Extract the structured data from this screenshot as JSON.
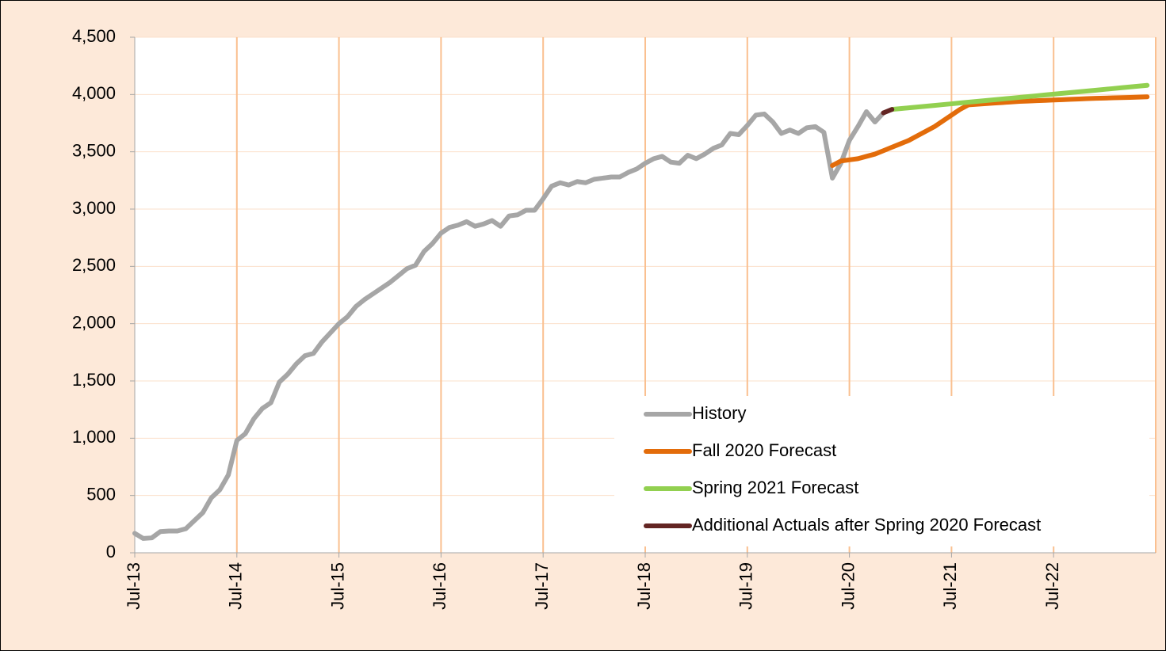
{
  "chart_data": {
    "type": "line",
    "categories": [
      "Jul-13",
      null,
      null,
      null,
      null,
      null,
      null,
      null,
      null,
      null,
      null,
      null,
      "Jul-14",
      null,
      null,
      null,
      null,
      null,
      null,
      null,
      null,
      null,
      null,
      null,
      "Jul-15",
      null,
      null,
      null,
      null,
      null,
      null,
      null,
      null,
      null,
      null,
      null,
      "Jul-16",
      null,
      null,
      null,
      null,
      null,
      null,
      null,
      null,
      null,
      null,
      null,
      "Jul-17",
      null,
      null,
      null,
      null,
      null,
      null,
      null,
      null,
      null,
      null,
      null,
      "Jul-18",
      null,
      null,
      null,
      null,
      null,
      null,
      null,
      null,
      null,
      null,
      null,
      "Jul-19",
      null,
      null,
      null,
      null,
      null,
      null,
      null,
      null,
      null,
      null,
      null,
      "Jul-20",
      null,
      null,
      null,
      null,
      null,
      null,
      null,
      null,
      null,
      null,
      null,
      "Jul-21",
      null,
      null,
      null,
      null,
      null,
      null,
      null,
      null,
      null,
      null,
      null,
      "Jul-22",
      null,
      null,
      null,
      null,
      null,
      null,
      null,
      null,
      null,
      null,
      null
    ],
    "series": [
      {
        "name": "History",
        "color": "#a6a6a6",
        "values": [
          170,
          125,
          130,
          185,
          190,
          190,
          210,
          280,
          350,
          480,
          550,
          680,
          980,
          1040,
          1170,
          1260,
          1310,
          1490,
          1560,
          1650,
          1720,
          1740,
          1840,
          1920,
          2000,
          2060,
          2150,
          2210,
          2260,
          2310,
          2360,
          2420,
          2480,
          2510,
          2630,
          2700,
          2790,
          2840,
          2860,
          2890,
          2850,
          2870,
          2900,
          2850,
          2940,
          2950,
          2990,
          2990,
          3090,
          3200,
          3230,
          3210,
          3240,
          3230,
          3260,
          3270,
          3280,
          3280,
          3320,
          3350,
          3400,
          3440,
          3460,
          3410,
          3400,
          3470,
          3440,
          3480,
          3530,
          3560,
          3660,
          3650,
          3730,
          3820,
          3830,
          3760,
          3660,
          3690,
          3660,
          3710,
          3720,
          3670,
          3270,
          3400,
          3600,
          3720,
          3850,
          3760,
          3840,
          null,
          null,
          null,
          null,
          null,
          null,
          null,
          null,
          null,
          null,
          null,
          null,
          null,
          null,
          null,
          null,
          null,
          null,
          null,
          null,
          null,
          null,
          null,
          null,
          null,
          null,
          null,
          null,
          null,
          null,
          null
        ]
      },
      {
        "name": "Fall 2020 Forecast",
        "color": "#e36c0a",
        "values": [
          null,
          null,
          null,
          null,
          null,
          null,
          null,
          null,
          null,
          null,
          null,
          null,
          null,
          null,
          null,
          null,
          null,
          null,
          null,
          null,
          null,
          null,
          null,
          null,
          null,
          null,
          null,
          null,
          null,
          null,
          null,
          null,
          null,
          null,
          null,
          null,
          null,
          null,
          null,
          null,
          null,
          null,
          null,
          null,
          null,
          null,
          null,
          null,
          null,
          null,
          null,
          null,
          null,
          null,
          null,
          null,
          null,
          null,
          null,
          null,
          null,
          null,
          null,
          null,
          null,
          null,
          null,
          null,
          null,
          null,
          null,
          null,
          null,
          null,
          null,
          null,
          null,
          null,
          null,
          null,
          null,
          null,
          3380,
          3420,
          3430,
          3440,
          3460,
          3480,
          3510,
          3540,
          3570,
          3600,
          3640,
          3680,
          3720,
          3770,
          3820,
          3870,
          3910,
          3915,
          3920,
          3925,
          3930,
          3935,
          3940,
          3943,
          3946,
          3949,
          3952,
          3955,
          3958,
          3961,
          3964,
          3967,
          3969,
          3971,
          3973,
          3975,
          3977,
          3980
        ]
      },
      {
        "name": "Spring 2021 Forecast",
        "color": "#92d050",
        "values": [
          null,
          null,
          null,
          null,
          null,
          null,
          null,
          null,
          null,
          null,
          null,
          null,
          null,
          null,
          null,
          null,
          null,
          null,
          null,
          null,
          null,
          null,
          null,
          null,
          null,
          null,
          null,
          null,
          null,
          null,
          null,
          null,
          null,
          null,
          null,
          null,
          null,
          null,
          null,
          null,
          null,
          null,
          null,
          null,
          null,
          null,
          null,
          null,
          null,
          null,
          null,
          null,
          null,
          null,
          null,
          null,
          null,
          null,
          null,
          null,
          null,
          null,
          null,
          null,
          null,
          null,
          null,
          null,
          null,
          null,
          null,
          null,
          null,
          null,
          null,
          null,
          null,
          null,
          null,
          null,
          null,
          null,
          null,
          null,
          null,
          null,
          null,
          null,
          null,
          3870,
          3877,
          3884,
          3891,
          3898,
          3905,
          3912,
          3919,
          3926,
          3933,
          3940,
          3947,
          3954,
          3961,
          3968,
          3975,
          3982,
          3989,
          3996,
          4003,
          4010,
          4017,
          4024,
          4031,
          4038,
          4045,
          4052,
          4059,
          4066,
          4073,
          4080
        ]
      },
      {
        "name": "Additional Actuals after Spring 2020 Forecast",
        "color": "#632523",
        "values": [
          null,
          null,
          null,
          null,
          null,
          null,
          null,
          null,
          null,
          null,
          null,
          null,
          null,
          null,
          null,
          null,
          null,
          null,
          null,
          null,
          null,
          null,
          null,
          null,
          null,
          null,
          null,
          null,
          null,
          null,
          null,
          null,
          null,
          null,
          null,
          null,
          null,
          null,
          null,
          null,
          null,
          null,
          null,
          null,
          null,
          null,
          null,
          null,
          null,
          null,
          null,
          null,
          null,
          null,
          null,
          null,
          null,
          null,
          null,
          null,
          null,
          null,
          null,
          null,
          null,
          null,
          null,
          null,
          null,
          null,
          null,
          null,
          null,
          null,
          null,
          null,
          null,
          null,
          null,
          null,
          null,
          null,
          null,
          null,
          null,
          null,
          null,
          null,
          3840,
          3870,
          null,
          null,
          null,
          null,
          null,
          null,
          null,
          null,
          null,
          null,
          null,
          null,
          null,
          null,
          null,
          null,
          null,
          null,
          null,
          null,
          null,
          null,
          null,
          null,
          null,
          null,
          null,
          null,
          null,
          null
        ]
      }
    ],
    "ylim": [
      0,
      4500
    ],
    "yticks": [
      0,
      500,
      {
        "value": 1000,
        "label": "1,000"
      },
      {
        "value": 1500,
        "label": "1,500"
      },
      {
        "value": 2000,
        "label": "2,000"
      },
      {
        "value": 2500,
        "label": "2,500"
      },
      {
        "value": 3000,
        "label": "3,000"
      },
      {
        "value": 3500,
        "label": "3,500"
      },
      {
        "value": 4000,
        "label": "4,000"
      },
      {
        "value": 4500,
        "label": "4,500"
      }
    ],
    "grid": true,
    "legend": "lower right"
  }
}
